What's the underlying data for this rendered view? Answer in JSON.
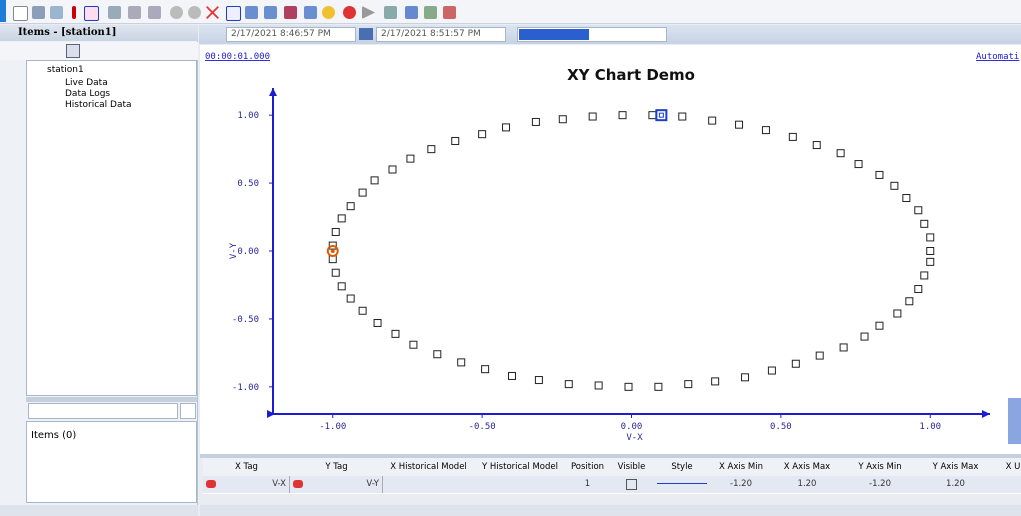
{
  "left_panel": {
    "title": "Items - [station1]",
    "tree": [
      {
        "label": "station1"
      },
      {
        "label": "Live Data"
      },
      {
        "label": "Data Logs"
      },
      {
        "label": "Historical Data"
      }
    ],
    "items_count": "Items (0)"
  },
  "time_bar": {
    "start": "2/17/2021  8:46:57 PM",
    "end": "2/17/2021  8:51:57 PM"
  },
  "chart_header": {
    "time": "00:00:01.000",
    "mode": "Automati"
  },
  "chart_data": {
    "type": "scatter",
    "title": "XY Chart Demo",
    "xlabel": "V-X",
    "ylabel": "V-Y",
    "color": "#222222",
    "x": [
      1.0,
      1.0,
      0.98,
      0.96,
      0.92,
      0.88,
      0.83,
      0.76,
      0.7,
      0.62,
      0.54,
      0.45,
      0.36,
      0.27,
      0.17,
      0.07,
      -0.03,
      -0.13,
      -0.23,
      -0.32,
      -0.42,
      -0.5,
      -0.59,
      -0.67,
      -0.74,
      -0.8,
      -0.86,
      -0.9,
      -0.94,
      -0.97,
      -0.99,
      -1.0,
      -1.0,
      -0.99,
      -0.97,
      -0.94,
      -0.9,
      -0.85,
      -0.79,
      -0.73,
      -0.65,
      -0.57,
      -0.49,
      -0.4,
      -0.31,
      -0.21,
      -0.11,
      -0.01,
      0.09,
      0.19,
      0.28,
      0.38,
      0.47,
      0.55,
      0.63,
      0.71,
      0.78,
      0.83,
      0.89,
      0.93,
      0.96,
      0.98,
      1.0
    ],
    "y": [
      0.0,
      0.1,
      0.2,
      0.3,
      0.39,
      0.48,
      0.56,
      0.64,
      0.72,
      0.78,
      0.84,
      0.89,
      0.93,
      0.96,
      0.99,
      1.0,
      1.0,
      0.99,
      0.97,
      0.95,
      0.91,
      0.86,
      0.81,
      0.75,
      0.68,
      0.6,
      0.52,
      0.43,
      0.33,
      0.24,
      0.14,
      0.04,
      -0.06,
      -0.16,
      -0.26,
      -0.35,
      -0.44,
      -0.53,
      -0.61,
      -0.69,
      -0.76,
      -0.82,
      -0.87,
      -0.92,
      -0.95,
      -0.98,
      -0.99,
      -1.0,
      -1.0,
      -0.98,
      -0.96,
      -0.93,
      -0.88,
      -0.83,
      -0.77,
      -0.71,
      -0.63,
      -0.55,
      -0.46,
      -0.37,
      -0.28,
      -0.18,
      -0.08
    ],
    "highlights": [
      {
        "x": -1.0,
        "y": 0.0,
        "color": "#e05a00"
      },
      {
        "x": 0.1,
        "y": 1.0,
        "color": "#1a3fc8"
      }
    ],
    "xlim": [
      -1.2,
      1.2
    ],
    "ylim": [
      -1.2,
      1.2
    ],
    "xticks": [
      {
        "value": -1,
        "label": "-1.00"
      },
      {
        "value": -0.5,
        "label": "-0.50"
      },
      {
        "value": 0,
        "label": "0.00"
      },
      {
        "value": 0.5,
        "label": "0.50"
      },
      {
        "value": 1,
        "label": "1.00"
      }
    ],
    "yticks": [
      {
        "value": -1,
        "label": "-1.00"
      },
      {
        "value": -0.5,
        "label": "-0.50"
      },
      {
        "value": 0,
        "label": "0.00"
      },
      {
        "value": 0.5,
        "label": "0.50"
      },
      {
        "value": 1,
        "label": "1.00"
      }
    ],
    "axis_color": "#1c1cd0"
  },
  "table": {
    "headers": [
      "X Tag",
      "Y Tag",
      "X Historical Model",
      "Y Historical Model",
      "Position",
      "Visible",
      "Style",
      "X Axis Min",
      "X Axis Max",
      "Y Axis Min",
      "Y Axis Max",
      "X U"
    ],
    "row": {
      "x_tag": "V-X",
      "y_tag": "V-Y",
      "position": "1",
      "x_axis_min": "-1.20",
      "x_axis_max": "1.20",
      "y_axis_min": "-1.20",
      "y_axis_max": "1.20"
    }
  }
}
